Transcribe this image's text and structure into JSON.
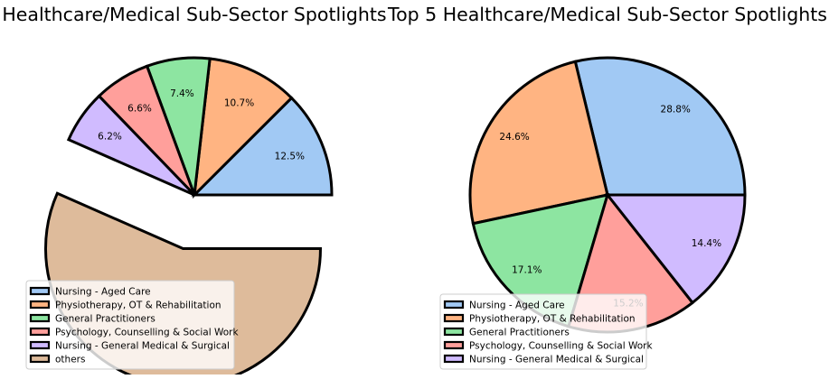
{
  "chart_data": [
    {
      "type": "pie",
      "title": "Healthcare/Medical Sub-Sector Spotlights",
      "start_angle": "0deg (3 o'clock), counter-clockwise",
      "explode": "only 'others' slice exploded",
      "slice_edge": "thick black outline",
      "legend_placement": "lower-left",
      "slices": [
        {
          "label": "Nursing - Aged Care",
          "value": 12.5,
          "pct_label": "12.5%",
          "color": "#a1c9f4",
          "explode": 0
        },
        {
          "label": "Physiotherapy, OT & Rehabilitation",
          "value": 10.7,
          "pct_label": "10.7%",
          "color": "#ffb482",
          "explode": 0
        },
        {
          "label": "General Practitioners",
          "value": 7.4,
          "pct_label": "7.4%",
          "color": "#8de5a1",
          "explode": 0
        },
        {
          "label": "Psychology, Counselling & Social Work",
          "value": 6.6,
          "pct_label": "6.6%",
          "color": "#ff9f9b",
          "explode": 0
        },
        {
          "label": "Nursing - General Medical & Surgical",
          "value": 6.2,
          "pct_label": "6.2%",
          "color": "#d0bbff",
          "explode": 0
        },
        {
          "label": "others",
          "value": 56.6,
          "pct_label": "56.6%",
          "color": "#debb9b",
          "explode": 1
        }
      ]
    },
    {
      "type": "pie",
      "title": "Top 5 Healthcare/Medical Sub-Sector Spotlights",
      "start_angle": "0deg (3 o'clock), counter-clockwise",
      "slice_edge": "thick black outline",
      "legend_placement": "lower-left",
      "slices": [
        {
          "label": "Nursing - Aged Care",
          "value": 28.8,
          "pct_label": "28.8%",
          "color": "#a1c9f4",
          "explode": 0
        },
        {
          "label": "Physiotherapy, OT & Rehabilitation",
          "value": 24.6,
          "pct_label": "24.6%",
          "color": "#ffb482",
          "explode": 0
        },
        {
          "label": "General Practitioners",
          "value": 17.1,
          "pct_label": "17.1%",
          "color": "#8de5a1",
          "explode": 0
        },
        {
          "label": "Psychology, Counselling & Social Work",
          "value": 15.2,
          "pct_label": "15.2%",
          "color": "#ff9f9b",
          "explode": 0
        },
        {
          "label": "Nursing - General Medical & Surgical",
          "value": 14.4,
          "pct_label": "14.4%",
          "color": "#d0bbff",
          "explode": 0
        }
      ]
    }
  ]
}
